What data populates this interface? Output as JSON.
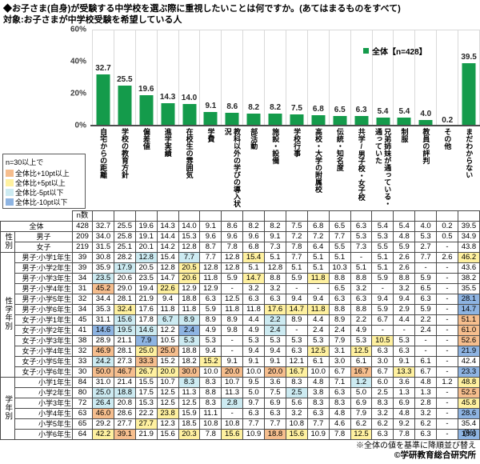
{
  "header": {
    "title": "◆お子さま(自身)が受験する中学校を選ぶ際に重視したいことは何ですか。(あてはまるものをすべて)",
    "subtitle": "対象:お子さまが中学校受験を希望している人"
  },
  "chart_data": {
    "type": "bar",
    "legend_label": "全体【n=428】",
    "bar_color": "#149b4b",
    "ylim": [
      0,
      60
    ],
    "yticks": [
      "60%",
      "40%",
      "20%",
      "0%"
    ],
    "categories": [
      "自宅からの距離",
      "学校の教育方針",
      "偏差値",
      "進学実績",
      "在校生の雰囲気",
      "学費",
      "教科以外の学びの導入状況",
      "部活動",
      "施設・設備",
      "学校行事",
      "高校・大学の附属校",
      "伝統・知名度",
      "共学/男子校・女子校",
      "兄弟姉妹が通っている・通っていた",
      "制服",
      "教員の評判",
      "その他",
      "まだわからない"
    ],
    "values": [
      32.7,
      25.5,
      19.6,
      14.3,
      14.0,
      9.1,
      8.6,
      8.2,
      8.2,
      7.5,
      6.8,
      6.5,
      6.3,
      5.4,
      5.4,
      4.0,
      0.2,
      39.5
    ]
  },
  "key_box": {
    "title": "n=30以上で",
    "items": [
      {
        "label": "全体比+10pt以上",
        "color": "#f6be8e"
      },
      {
        "label": "全体比+5pt以上",
        "color": "#fff1a0"
      },
      {
        "label": "全体比-5pt以下",
        "color": "#cdebf2"
      },
      {
        "label": "全体比-10pt以下",
        "color": "#8eb4e2"
      }
    ]
  },
  "table": {
    "n_header": "n数",
    "sections": [
      {
        "group": "",
        "center": true,
        "rows": [
          {
            "label": "全体",
            "n": "428",
            "v": [
              "32.7",
              "25.5",
              "19.6",
              "14.3",
              "14.0",
              "9.1",
              "8.6",
              "8.2",
              "8.2",
              "7.5",
              "6.8",
              "6.5",
              "6.3",
              "5.4",
              "5.4",
              "4.0",
              "0.2",
              "39.5"
            ],
            "c": {}
          }
        ]
      },
      {
        "group": "性別",
        "center": true,
        "rows": [
          {
            "label": "男子",
            "n": "209",
            "v": [
              "34.0",
              "25.8",
              "19.1",
              "14.4",
              "15.3",
              "9.6",
              "9.6",
              "9.6",
              "9.1",
              "7.2",
              "7.2",
              "7.7",
              "5.3",
              "5.3",
              "4.8",
              "5.3",
              "0.5",
              "34.9"
            ],
            "c": {}
          },
          {
            "label": "女子",
            "n": "219",
            "v": [
              "31.5",
              "25.1",
              "20.1",
              "14.2",
              "12.8",
              "8.7",
              "7.8",
              "6.8",
              "7.3",
              "7.8",
              "6.4",
              "5.5",
              "7.3",
              "5.5",
              "5.9",
              "2.7",
              "-",
              "43.8"
            ],
            "c": {}
          }
        ]
      },
      {
        "group": "性学年別",
        "center": false,
        "rows": [
          {
            "label": "男子:小学1年生",
            "n": "39",
            "v": [
              "30.8",
              "28.2",
              "12.8",
              "15.4",
              "7.7",
              "7.7",
              "12.8",
              "15.4",
              "5.1",
              "7.7",
              "5.1",
              "5.1",
              "-",
              "5.1",
              "2.6",
              "7.7",
              "2.6",
              "46.2"
            ],
            "c": {
              "3": "lb",
              "5": "lb",
              "8": "y",
              "18": "y"
            }
          },
          {
            "label": "男子:小学2年生",
            "n": "39",
            "v": [
              "35.9",
              "17.9",
              "20.5",
              "12.8",
              "20.5",
              "12.8",
              "12.8",
              "5.1",
              "12.8",
              "5.1",
              "5.1",
              "10.3",
              "5.1",
              "5.1",
              "2.6",
              "-",
              "-",
              "43.6"
            ],
            "c": {
              "2": "lb",
              "5": "y"
            }
          },
          {
            "label": "男子:小学3年生",
            "n": "34",
            "v": [
              "23.5",
              "20.6",
              "23.5",
              "14.7",
              "20.6",
              "11.8",
              "5.9",
              "14.7",
              "8.8",
              "5.9",
              "11.8",
              "8.8",
              "8.8",
              "5.9",
              "8.8",
              "5.9",
              "-",
              "38.2"
            ],
            "c": {
              "1": "lb",
              "5": "y",
              "8": "y",
              "11": "y"
            }
          },
          {
            "label": "男子:小学4年生",
            "n": "31",
            "v": [
              "45.2",
              "29.0",
              "19.4",
              "22.6",
              "12.9",
              "12.9",
              "-",
              "3.2",
              "3.2",
              "-",
              "-",
              "6.5",
              "3.2",
              "-",
              "3.2",
              "6.5",
              "-",
              "35.5"
            ],
            "c": {
              "1": "o",
              "4": "y"
            }
          },
          {
            "label": "男子:小学5年生",
            "n": "32",
            "v": [
              "34.4",
              "28.1",
              "21.9",
              "9.4",
              "18.8",
              "6.3",
              "12.5",
              "6.3",
              "6.3",
              "9.4",
              "9.4",
              "6.3",
              "6.3",
              "9.4",
              "9.4",
              "6.3",
              "-",
              "28.1"
            ],
            "c": {
              "18": "b"
            }
          },
          {
            "label": "男子:小学6年生",
            "n": "34",
            "v": [
              "35.3",
              "32.4",
              "17.6",
              "11.8",
              "11.8",
              "5.9",
              "11.8",
              "11.8",
              "17.6",
              "14.7",
              "11.8",
              "8.8",
              "8.8",
              "5.9",
              "2.9",
              "5.9",
              "-",
              "14.7"
            ],
            "c": {
              "2": "y",
              "9": "y",
              "10": "y",
              "11": "y",
              "18": "b"
            }
          },
          {
            "label": "女子:小学1年生",
            "n": "45",
            "v": [
              "31.1",
              "15.6",
              "17.8",
              "6.7",
              "8.9",
              "8.9",
              "8.9",
              "4.4",
              "2.2",
              "8.9",
              "4.4",
              "8.9",
              "2.2",
              "6.7",
              "4.4",
              "2.2",
              "-",
              "51.1"
            ],
            "c": {
              "2": "lb",
              "4": "lb",
              "5": "lb",
              "9": "lb",
              "18": "o"
            }
          },
          {
            "label": "女子:小学2年生",
            "n": "41",
            "v": [
              "14.6",
              "19.5",
              "14.6",
              "12.2",
              "2.4",
              "4.9",
              "9.8",
              "4.9",
              "2.4",
              "-",
              "2.4",
              "2.4",
              "4.9",
              "-",
              "-",
              "2.4",
              "-",
              "61.0"
            ],
            "c": {
              "1": "b",
              "2": "lb",
              "3": "lb",
              "5": "b",
              "9": "lb",
              "18": "o"
            }
          },
          {
            "label": "女子:小学3年生",
            "n": "38",
            "v": [
              "28.9",
              "21.1",
              "7.9",
              "10.5",
              "5.3",
              "5.3",
              "-",
              "5.3",
              "5.3",
              "5.3",
              "5.3",
              "7.9",
              "5.3",
              "10.5",
              "5.3",
              "-",
              "-",
              "52.6"
            ],
            "c": {
              "3": "b",
              "5": "lb",
              "14": "y",
              "18": "o"
            }
          },
          {
            "label": "女子:小学4年生",
            "n": "32",
            "v": [
              "46.9",
              "28.1",
              "25.0",
              "25.0",
              "18.8",
              "9.4",
              "-",
              "9.4",
              "9.4",
              "6.3",
              "12.5",
              "3.1",
              "12.5",
              "6.3",
              "6.3",
              "-",
              "-",
              "21.9"
            ],
            "c": {
              "1": "o",
              "3": "y",
              "4": "o",
              "11": "y",
              "13": "y",
              "18": "b"
            }
          },
          {
            "label": "女子:小学5年生",
            "n": "33",
            "v": [
              "24.2",
              "27.3",
              "33.3",
              "15.2",
              "18.2",
              "15.2",
              "9.1",
              "9.1",
              "9.1",
              "12.1",
              "6.1",
              "3.0",
              "6.1",
              "3.0",
              "9.1",
              "6.1",
              "-",
              "42.4"
            ],
            "c": {
              "1": "lb",
              "3": "o",
              "6": "y"
            }
          },
          {
            "label": "女子:小学6年生",
            "n": "30",
            "v": [
              "50.0",
              "46.7",
              "26.7",
              "20.0",
              "30.0",
              "10.0",
              "20.0",
              "10.0",
              "20.0",
              "16.7",
              "10.0",
              "6.7",
              "16.7",
              "6.7",
              "13.3",
              "6.7",
              "-",
              "23.3"
            ],
            "c": {
              "1": "o",
              "2": "o",
              "3": "y",
              "4": "y",
              "5": "o",
              "7": "o",
              "9": "o",
              "10": "y",
              "13": "o",
              "15": "y",
              "18": "b"
            }
          }
        ]
      },
      {
        "group": "学年別",
        "center": false,
        "rows": [
          {
            "label": "小学1年生",
            "n": "84",
            "v": [
              "31.0",
              "21.4",
              "15.5",
              "10.7",
              "8.3",
              "8.3",
              "10.7",
              "9.5",
              "3.6",
              "8.3",
              "4.8",
              "7.1",
              "1.2",
              "6.0",
              "3.6",
              "4.8",
              "1.2",
              "48.8"
            ],
            "c": {
              "5": "lb",
              "13": "lb",
              "18": "y"
            }
          },
          {
            "label": "小学2年生",
            "n": "80",
            "v": [
              "25.0",
              "18.8",
              "17.5",
              "12.5",
              "11.3",
              "8.8",
              "11.3",
              "5.0",
              "7.5",
              "2.5",
              "3.8",
              "6.3",
              "5.0",
              "2.5",
              "1.3",
              "1.3",
              "-",
              "52.5"
            ],
            "c": {
              "1": "lb",
              "2": "lb",
              "10": "lb",
              "18": "o"
            }
          },
          {
            "label": "小学3年生",
            "n": "72",
            "v": [
              "26.4",
              "20.8",
              "15.3",
              "12.5",
              "12.5",
              "8.3",
              "2.8",
              "9.7",
              "6.9",
              "5.6",
              "8.3",
              "8.3",
              "6.9",
              "8.3",
              "6.9",
              "2.8",
              "-",
              "45.8"
            ],
            "c": {
              "1": "lb",
              "7": "lb",
              "18": "y"
            }
          },
          {
            "label": "小学4年生",
            "n": "63",
            "v": [
              "46.0",
              "28.6",
              "22.2",
              "23.8",
              "15.9",
              "11.1",
              "-",
              "6.3",
              "6.3",
              "3.2",
              "6.3",
              "4.8",
              "7.9",
              "3.2",
              "4.8",
              "3.2",
              "-",
              "28.6"
            ],
            "c": {
              "1": "o",
              "4": "y",
              "18": "b"
            }
          },
          {
            "label": "小学5年生",
            "n": "65",
            "v": [
              "29.2",
              "27.7",
              "27.7",
              "12.3",
              "18.5",
              "10.8",
              "10.8",
              "7.7",
              "7.7",
              "10.8",
              "7.7",
              "4.6",
              "6.2",
              "6.2",
              "9.2",
              "6.2",
              "-",
              "35.4"
            ],
            "c": {
              "3": "y"
            }
          },
          {
            "label": "小学6年生",
            "n": "64",
            "v": [
              "42.2",
              "39.1",
              "21.9",
              "15.6",
              "20.3",
              "7.8",
              "15.6",
              "10.9",
              "18.8",
              "15.6",
              "10.9",
              "7.8",
              "12.5",
              "6.3",
              "7.8",
              "6.3",
              "-",
              "18.8"
            ],
            "c": {
              "1": "y",
              "2": "o",
              "5": "y",
              "7": "y",
              "9": "o",
              "10": "y",
              "13": "y",
              "18": "b"
            }
          }
        ]
      }
    ]
  },
  "footer": {
    "percent_note": "(%)",
    "sort_note": "※全体の値を基準に降順並び替え",
    "copyright": "©学研教育総合研究所"
  }
}
